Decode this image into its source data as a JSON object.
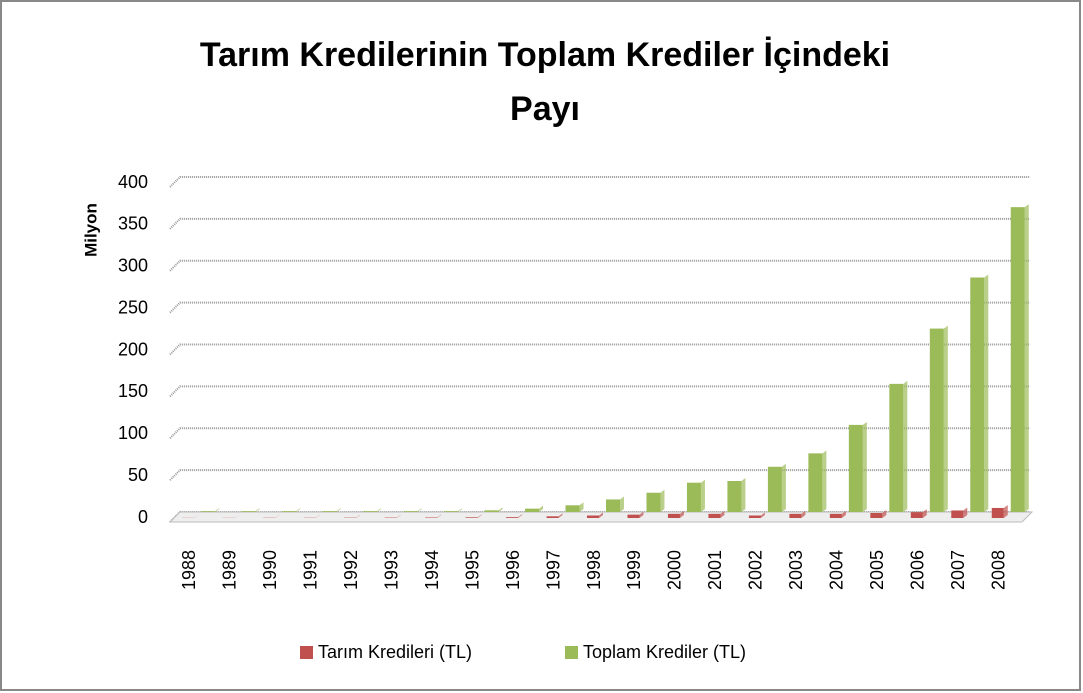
{
  "chart_data": {
    "type": "bar",
    "title": "Tarım Kredilerinin Toplam Krediler İçindeki Payı",
    "y_label": "Milyon",
    "categories": [
      "1988",
      "1989",
      "1990",
      "1991",
      "1992",
      "1993",
      "1994",
      "1995",
      "1996",
      "1997",
      "1998",
      "1999",
      "2000",
      "2001",
      "2002",
      "2003",
      "2004",
      "2005",
      "2006",
      "2007",
      "2008"
    ],
    "series": [
      {
        "name": "Tarım Kredileri (TL)",
        "color": "#c0504d",
        "values": [
          0.2,
          0.2,
          0.3,
          0.3,
          0.4,
          0.5,
          0.6,
          0.8,
          1,
          2,
          3,
          4,
          5,
          5,
          3,
          5,
          5,
          6,
          7,
          9,
          12
        ]
      },
      {
        "name": "Toplam Krediler (TL)",
        "color": "#9bbb59",
        "values": [
          1,
          1,
          1,
          1,
          1,
          1,
          1,
          2,
          4,
          8,
          15,
          23,
          35,
          37,
          54,
          70,
          104,
          153,
          219,
          280,
          364
        ]
      }
    ],
    "ylim": [
      0,
      400
    ],
    "yticks": [
      0,
      50,
      100,
      150,
      200,
      250,
      300,
      350,
      400
    ],
    "grid": true,
    "legend": "bottom"
  }
}
